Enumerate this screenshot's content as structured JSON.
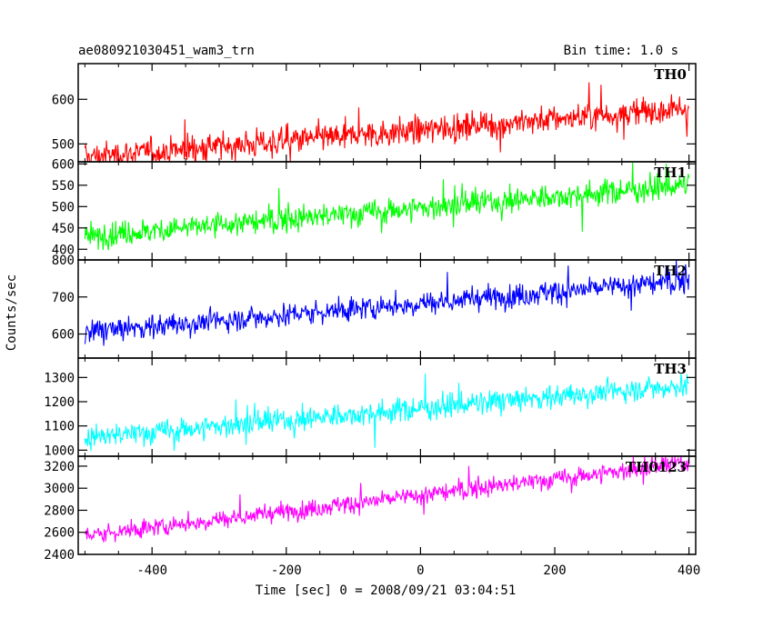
{
  "chart_data": {
    "type": "line",
    "title_left": "ae080921030451_wam3_trn",
    "title_right": "Bin time: 1.0 s",
    "xlabel": "Time [sec] 0 = 2008/09/21 03:04:51",
    "ylabel": "Counts/sec",
    "xlim": [
      -510,
      410
    ],
    "xticks": [
      -400,
      -200,
      0,
      200,
      400
    ],
    "x_start": -500,
    "x_end": 400,
    "panels": [
      {
        "name": "TH0",
        "color": "#ff0000",
        "ylim": [
          460,
          680
        ],
        "yticks": [
          500,
          600
        ],
        "trend_start": 470,
        "trend_end": 580,
        "noise": 22,
        "min_clip": 460,
        "max_clip": 680
      },
      {
        "name": "TH1",
        "color": "#00ff00",
        "ylim": [
          375,
          605
        ],
        "yticks": [
          400,
          450,
          500,
          550,
          600
        ],
        "trend_start": 430,
        "trend_end": 550,
        "noise": 21,
        "min_clip": 375,
        "max_clip": 605
      },
      {
        "name": "TH2",
        "color": "#0000ff",
        "ylim": [
          535,
          800
        ],
        "yticks": [
          600,
          700,
          800
        ],
        "trend_start": 605,
        "trend_end": 745,
        "noise": 23,
        "min_clip": 535,
        "max_clip": 800
      },
      {
        "name": "TH3",
        "color": "#00ffff",
        "ylim": [
          975,
          1380
        ],
        "yticks": [
          1000,
          1100,
          1200,
          1300
        ],
        "trend_start": 1050,
        "trend_end": 1270,
        "noise": 35,
        "min_clip": 975,
        "max_clip": 1380
      },
      {
        "name": "TH0123",
        "color": "#ff00ff",
        "ylim": [
          2400,
          3290
        ],
        "yticks": [
          2400,
          2600,
          2800,
          3000,
          3200
        ],
        "trend_start": 2570,
        "trend_end": 3230,
        "noise": 60,
        "min_clip": 2400,
        "max_clip": 3290
      }
    ]
  }
}
